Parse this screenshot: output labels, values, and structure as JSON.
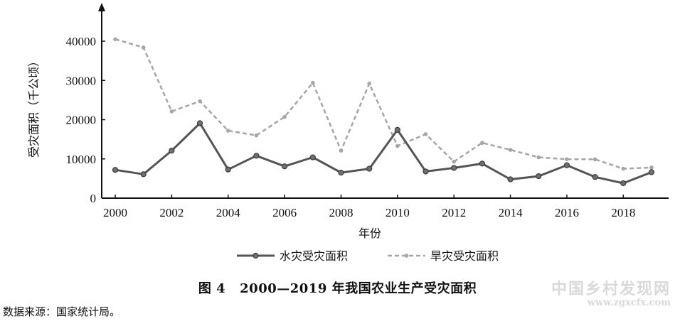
{
  "chart_data": {
    "type": "line",
    "x": [
      2000,
      2001,
      2002,
      2003,
      2004,
      2005,
      2006,
      2007,
      2008,
      2009,
      2010,
      2011,
      2012,
      2013,
      2014,
      2015,
      2016,
      2017,
      2018,
      2019
    ],
    "series": [
      {
        "name": "水灾受灾面积",
        "style": "solid",
        "color": "#555555",
        "values": [
          7200,
          6100,
          12100,
          19100,
          7300,
          10800,
          8100,
          10400,
          6500,
          7500,
          17400,
          6800,
          7700,
          8800,
          4800,
          5600,
          8400,
          5400,
          3800,
          6600
        ]
      },
      {
        "name": "旱灾受灾面积",
        "style": "dashed",
        "color": "#a6a6a6",
        "values": [
          40500,
          38400,
          22100,
          24700,
          17200,
          16000,
          20700,
          29400,
          12100,
          29200,
          13300,
          16300,
          9300,
          14100,
          12300,
          10400,
          9900,
          9900,
          7500,
          7800
        ]
      }
    ],
    "ylabel": "受灾面积（千公顷）",
    "xlabel": "年份",
    "ylim": [
      0,
      40000
    ],
    "xlim": [
      2000,
      2019
    ],
    "yticks": [
      "0",
      "10000",
      "20000",
      "30000",
      "40000"
    ],
    "xticks": [
      "2000",
      "2002",
      "2004",
      "2006",
      "2008",
      "2010",
      "2012",
      "2014",
      "2016",
      "2018"
    ],
    "legend_position": "bottom-center",
    "grid": false
  },
  "caption": {
    "label": "图 4",
    "text": "2000—2019 年我国农业生产受灾面积"
  },
  "source_note": "数据来源：国家统计局。",
  "watermark": {
    "main": "中国乡村发现网",
    "url": "www.zgxcfx.com"
  }
}
